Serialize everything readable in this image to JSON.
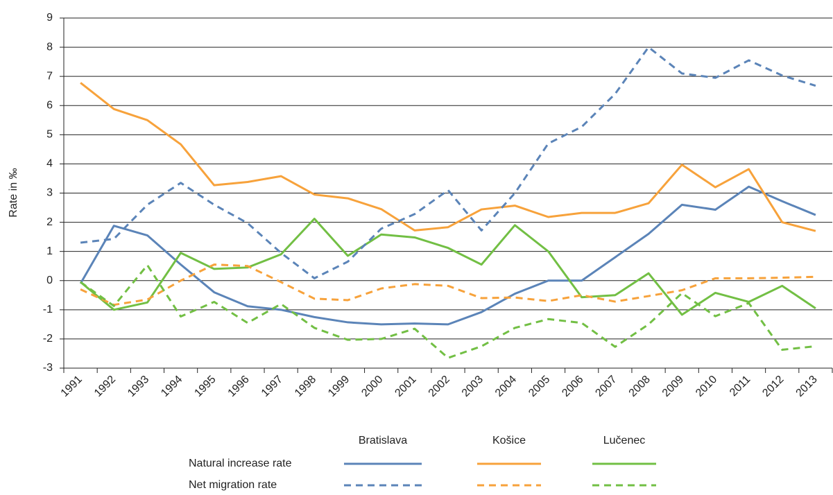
{
  "chart_data": {
    "type": "line",
    "y_label": "Rate in ‰",
    "categories": [
      "1991",
      "1992",
      "1993",
      "1994",
      "1995",
      "1996",
      "1997",
      "1998",
      "1999",
      "2000",
      "2001",
      "2002",
      "2003",
      "2004",
      "2005",
      "2006",
      "2007",
      "2008",
      "2009",
      "2010",
      "2011",
      "2012",
      "2013"
    ],
    "ylim": [
      -3,
      9
    ],
    "yticks": [
      -3,
      -2,
      -1,
      0,
      1,
      2,
      3,
      4,
      5,
      6,
      7,
      8,
      9
    ],
    "grid": true,
    "legend_columns": [
      "Bratislava",
      "Košice",
      "Lučenec"
    ],
    "legend_rows": [
      "Natural increase rate",
      "Net migration rate"
    ],
    "series": [
      {
        "color": "#5b84b8",
        "dashed": false,
        "values": [
          -0.1,
          1.88,
          1.55,
          0.55,
          -0.4,
          -0.88,
          -1.0,
          -1.25,
          -1.43,
          -1.5,
          -1.47,
          -1.5,
          -1.08,
          -0.45,
          0.0,
          0.0,
          0.8,
          1.6,
          2.6,
          2.43,
          3.22,
          2.72,
          2.25
        ]
      },
      {
        "color": "#f7a23b",
        "dashed": false,
        "values": [
          6.78,
          5.88,
          5.5,
          4.67,
          3.27,
          3.38,
          3.58,
          2.95,
          2.82,
          2.45,
          1.72,
          1.83,
          2.44,
          2.57,
          2.18,
          2.32,
          2.32,
          2.65,
          3.97,
          3.2,
          3.82,
          2.0,
          1.7
        ]
      },
      {
        "color": "#72bf44",
        "dashed": false,
        "values": [
          -0.05,
          -1.0,
          -0.75,
          0.95,
          0.4,
          0.45,
          0.9,
          2.12,
          0.85,
          1.58,
          1.48,
          1.12,
          0.55,
          1.9,
          1.0,
          -0.57,
          -0.5,
          0.25,
          -1.17,
          -0.42,
          -0.73,
          -0.18,
          -0.95
        ]
      },
      {
        "color": "#5b84b8",
        "dashed": true,
        "values": [
          1.3,
          1.43,
          2.6,
          3.35,
          2.6,
          1.97,
          0.95,
          0.08,
          0.65,
          1.78,
          2.28,
          3.1,
          1.72,
          3.0,
          4.7,
          5.27,
          6.4,
          8.0,
          7.1,
          6.95,
          7.55,
          7.03,
          6.68
        ]
      },
      {
        "color": "#f7a23b",
        "dashed": true,
        "values": [
          -0.3,
          -0.83,
          -0.65,
          0.0,
          0.55,
          0.5,
          -0.05,
          -0.62,
          -0.67,
          -0.27,
          -0.12,
          -0.18,
          -0.6,
          -0.58,
          -0.7,
          -0.5,
          -0.72,
          -0.53,
          -0.33,
          0.08,
          0.08,
          0.1,
          0.13
        ]
      },
      {
        "color": "#72bf44",
        "dashed": true,
        "values": [
          -0.05,
          -0.87,
          0.53,
          -1.23,
          -0.73,
          -1.45,
          -0.8,
          -1.62,
          -2.03,
          -2.0,
          -1.65,
          -2.65,
          -2.25,
          -1.62,
          -1.32,
          -1.45,
          -2.27,
          -1.5,
          -0.43,
          -1.22,
          -0.77,
          -2.37,
          -2.25
        ]
      }
    ]
  }
}
